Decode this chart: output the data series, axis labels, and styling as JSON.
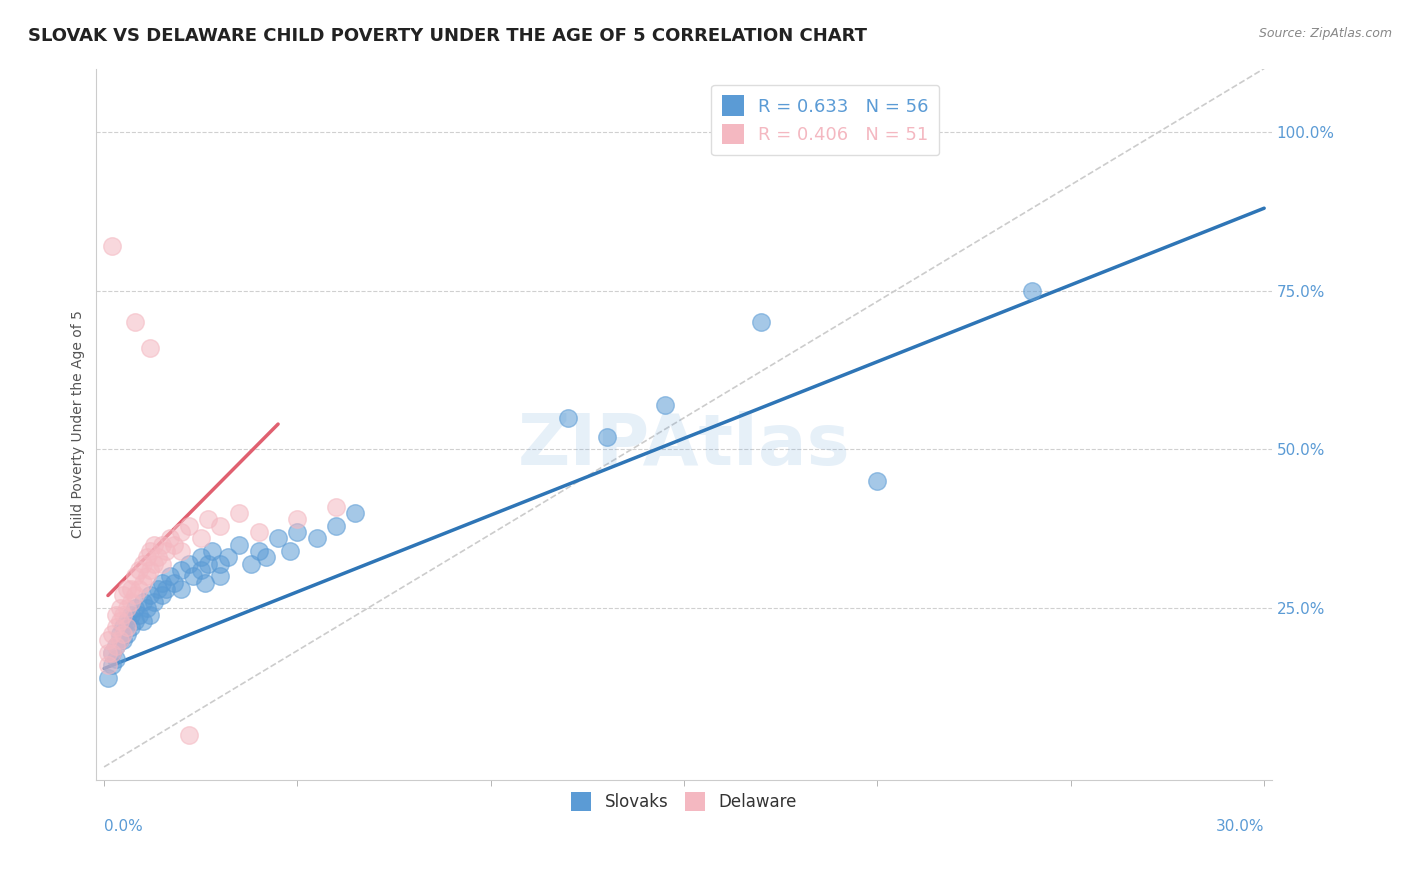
{
  "title": "SLOVAK VS DELAWARE CHILD POVERTY UNDER THE AGE OF 5 CORRELATION CHART",
  "source": "Source: ZipAtlas.com",
  "ylabel": "Child Poverty Under the Age of 5",
  "legend_blue": {
    "R": "0.633",
    "N": "56",
    "label": "Slovaks"
  },
  "legend_pink": {
    "R": "0.406",
    "N": "51",
    "label": "Delaware"
  },
  "blue_color": "#5b9bd5",
  "pink_color": "#f4b8c1",
  "blue_line_color": "#2e75b6",
  "pink_line_color": "#e06070",
  "diag_color": "#cccccc",
  "watermark": "ZIPAtlas",
  "blue_scatter": [
    [
      0.001,
      0.14
    ],
    [
      0.002,
      0.16
    ],
    [
      0.002,
      0.18
    ],
    [
      0.003,
      0.17
    ],
    [
      0.003,
      0.19
    ],
    [
      0.004,
      0.2
    ],
    [
      0.004,
      0.21
    ],
    [
      0.005,
      0.2
    ],
    [
      0.005,
      0.22
    ],
    [
      0.006,
      0.21
    ],
    [
      0.006,
      0.23
    ],
    [
      0.007,
      0.22
    ],
    [
      0.007,
      0.24
    ],
    [
      0.008,
      0.23
    ],
    [
      0.008,
      0.25
    ],
    [
      0.009,
      0.24
    ],
    [
      0.01,
      0.23
    ],
    [
      0.01,
      0.26
    ],
    [
      0.011,
      0.25
    ],
    [
      0.012,
      0.24
    ],
    [
      0.012,
      0.27
    ],
    [
      0.013,
      0.26
    ],
    [
      0.014,
      0.28
    ],
    [
      0.015,
      0.27
    ],
    [
      0.015,
      0.29
    ],
    [
      0.016,
      0.28
    ],
    [
      0.017,
      0.3
    ],
    [
      0.018,
      0.29
    ],
    [
      0.02,
      0.31
    ],
    [
      0.02,
      0.28
    ],
    [
      0.022,
      0.32
    ],
    [
      0.023,
      0.3
    ],
    [
      0.025,
      0.33
    ],
    [
      0.025,
      0.31
    ],
    [
      0.026,
      0.29
    ],
    [
      0.027,
      0.32
    ],
    [
      0.028,
      0.34
    ],
    [
      0.03,
      0.3
    ],
    [
      0.03,
      0.32
    ],
    [
      0.032,
      0.33
    ],
    [
      0.035,
      0.35
    ],
    [
      0.038,
      0.32
    ],
    [
      0.04,
      0.34
    ],
    [
      0.042,
      0.33
    ],
    [
      0.045,
      0.36
    ],
    [
      0.048,
      0.34
    ],
    [
      0.05,
      0.37
    ],
    [
      0.055,
      0.36
    ],
    [
      0.06,
      0.38
    ],
    [
      0.065,
      0.4
    ],
    [
      0.12,
      0.55
    ],
    [
      0.13,
      0.52
    ],
    [
      0.145,
      0.57
    ],
    [
      0.17,
      0.7
    ],
    [
      0.2,
      0.45
    ],
    [
      0.24,
      0.75
    ]
  ],
  "pink_scatter": [
    [
      0.001,
      0.16
    ],
    [
      0.001,
      0.18
    ],
    [
      0.001,
      0.2
    ],
    [
      0.002,
      0.18
    ],
    [
      0.002,
      0.21
    ],
    [
      0.003,
      0.19
    ],
    [
      0.003,
      0.22
    ],
    [
      0.003,
      0.24
    ],
    [
      0.004,
      0.2
    ],
    [
      0.004,
      0.23
    ],
    [
      0.004,
      0.25
    ],
    [
      0.005,
      0.21
    ],
    [
      0.005,
      0.24
    ],
    [
      0.005,
      0.27
    ],
    [
      0.006,
      0.22
    ],
    [
      0.006,
      0.25
    ],
    [
      0.006,
      0.28
    ],
    [
      0.007,
      0.26
    ],
    [
      0.007,
      0.28
    ],
    [
      0.008,
      0.27
    ],
    [
      0.008,
      0.3
    ],
    [
      0.009,
      0.28
    ],
    [
      0.009,
      0.31
    ],
    [
      0.01,
      0.29
    ],
    [
      0.01,
      0.32
    ],
    [
      0.011,
      0.3
    ],
    [
      0.011,
      0.33
    ],
    [
      0.012,
      0.31
    ],
    [
      0.012,
      0.34
    ],
    [
      0.013,
      0.32
    ],
    [
      0.013,
      0.35
    ],
    [
      0.014,
      0.33
    ],
    [
      0.015,
      0.32
    ],
    [
      0.015,
      0.35
    ],
    [
      0.016,
      0.34
    ],
    [
      0.017,
      0.36
    ],
    [
      0.018,
      0.35
    ],
    [
      0.02,
      0.37
    ],
    [
      0.02,
      0.34
    ],
    [
      0.022,
      0.38
    ],
    [
      0.025,
      0.36
    ],
    [
      0.027,
      0.39
    ],
    [
      0.03,
      0.38
    ],
    [
      0.035,
      0.4
    ],
    [
      0.04,
      0.37
    ],
    [
      0.05,
      0.39
    ],
    [
      0.06,
      0.41
    ],
    [
      0.002,
      0.82
    ],
    [
      0.008,
      0.7
    ],
    [
      0.012,
      0.66
    ],
    [
      0.022,
      0.05
    ]
  ],
  "blue_line": {
    "x0": 0.0,
    "y0": 0.155,
    "x1": 0.3,
    "y1": 0.88
  },
  "pink_line": {
    "x0": 0.001,
    "y0": 0.27,
    "x1": 0.045,
    "y1": 0.54
  },
  "diag_line": {
    "x0": 0.0,
    "y0": 0.0,
    "x1": 0.3,
    "y1": 1.1
  },
  "xlim": [
    -0.002,
    0.302
  ],
  "ylim": [
    -0.02,
    1.1
  ],
  "ytick_positions": [
    0.25,
    0.5,
    0.75,
    1.0
  ],
  "ytick_labels": [
    "25.0%",
    "50.0%",
    "75.0%",
    "100.0%"
  ],
  "xtick_left": "0.0%",
  "xtick_right": "30.0%",
  "background_color": "#ffffff",
  "grid_color": "#d0d0d0",
  "title_fontsize": 13,
  "source_fontsize": 9,
  "axis_label_fontsize": 10,
  "tick_fontsize": 11
}
